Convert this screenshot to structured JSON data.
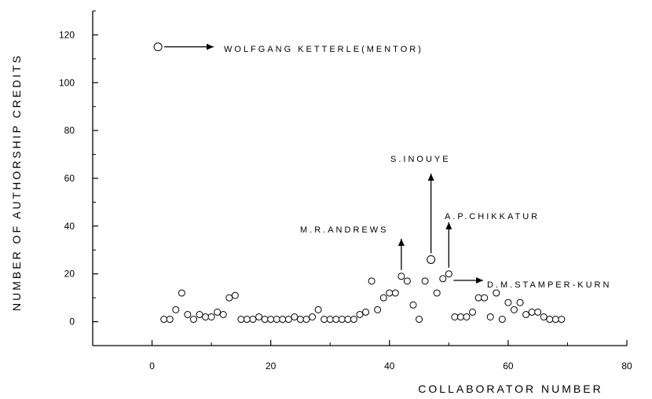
{
  "chart_data": {
    "type": "scatter",
    "title": "",
    "xlabel": "COLLABORATOR NUMBER",
    "ylabel": "NUMBER OF AUTHORSHIP CREDITS",
    "xlim": [
      -10,
      80
    ],
    "ylim": [
      -10,
      130
    ],
    "x_ticks": [
      0,
      20,
      40,
      60,
      80
    ],
    "y_ticks": [
      0,
      20,
      40,
      60,
      80,
      100,
      120
    ],
    "grid": false,
    "points": [
      {
        "x": 1,
        "y": 115
      },
      {
        "x": 2,
        "y": 1
      },
      {
        "x": 3,
        "y": 1
      },
      {
        "x": 4,
        "y": 5
      },
      {
        "x": 5,
        "y": 12
      },
      {
        "x": 6,
        "y": 3
      },
      {
        "x": 7,
        "y": 1
      },
      {
        "x": 8,
        "y": 3
      },
      {
        "x": 9,
        "y": 2
      },
      {
        "x": 10,
        "y": 2
      },
      {
        "x": 11,
        "y": 4
      },
      {
        "x": 12,
        "y": 3
      },
      {
        "x": 13,
        "y": 10
      },
      {
        "x": 14,
        "y": 11
      },
      {
        "x": 15,
        "y": 1
      },
      {
        "x": 16,
        "y": 1
      },
      {
        "x": 17,
        "y": 1
      },
      {
        "x": 18,
        "y": 2
      },
      {
        "x": 19,
        "y": 1
      },
      {
        "x": 20,
        "y": 1
      },
      {
        "x": 21,
        "y": 1
      },
      {
        "x": 22,
        "y": 1
      },
      {
        "x": 23,
        "y": 1
      },
      {
        "x": 24,
        "y": 2
      },
      {
        "x": 25,
        "y": 1
      },
      {
        "x": 26,
        "y": 1
      },
      {
        "x": 27,
        "y": 2
      },
      {
        "x": 28,
        "y": 5
      },
      {
        "x": 29,
        "y": 1
      },
      {
        "x": 30,
        "y": 1
      },
      {
        "x": 31,
        "y": 1
      },
      {
        "x": 32,
        "y": 1
      },
      {
        "x": 33,
        "y": 1
      },
      {
        "x": 34,
        "y": 1
      },
      {
        "x": 35,
        "y": 3
      },
      {
        "x": 36,
        "y": 4
      },
      {
        "x": 37,
        "y": 17
      },
      {
        "x": 38,
        "y": 5
      },
      {
        "x": 39,
        "y": 10
      },
      {
        "x": 40,
        "y": 12
      },
      {
        "x": 41,
        "y": 12
      },
      {
        "x": 42,
        "y": 19
      },
      {
        "x": 43,
        "y": 17
      },
      {
        "x": 44,
        "y": 7
      },
      {
        "x": 45,
        "y": 1
      },
      {
        "x": 46,
        "y": 17
      },
      {
        "x": 47,
        "y": 26
      },
      {
        "x": 48,
        "y": 12
      },
      {
        "x": 49,
        "y": 18
      },
      {
        "x": 50,
        "y": 20
      },
      {
        "x": 51,
        "y": 2
      },
      {
        "x": 52,
        "y": 2
      },
      {
        "x": 53,
        "y": 2
      },
      {
        "x": 54,
        "y": 4
      },
      {
        "x": 55,
        "y": 10
      },
      {
        "x": 56,
        "y": 10
      },
      {
        "x": 57,
        "y": 2
      },
      {
        "x": 58,
        "y": 12
      },
      {
        "x": 59,
        "y": 1
      },
      {
        "x": 60,
        "y": 8
      },
      {
        "x": 61,
        "y": 5
      },
      {
        "x": 62,
        "y": 8
      },
      {
        "x": 63,
        "y": 3
      },
      {
        "x": 64,
        "y": 4
      },
      {
        "x": 65,
        "y": 4
      },
      {
        "x": 66,
        "y": 2
      },
      {
        "x": 67,
        "y": 1
      },
      {
        "x": 68,
        "y": 1
      },
      {
        "x": 69,
        "y": 1
      }
    ],
    "annotations": [
      {
        "text": "WOLFGANG KETTERLE(MENTOR)",
        "point_x": 1,
        "point_y": 115
      },
      {
        "text": "S.INOUYE",
        "point_x": 47,
        "point_y": 26
      },
      {
        "text": "M.R.ANDREWS",
        "point_x": 42,
        "point_y": 19
      },
      {
        "text": "A.P.CHIKKATUR",
        "point_x": 50,
        "point_y": 20
      },
      {
        "text": "D.M.STAMPER-KURN",
        "point_x": 50,
        "point_y": 20
      }
    ]
  }
}
